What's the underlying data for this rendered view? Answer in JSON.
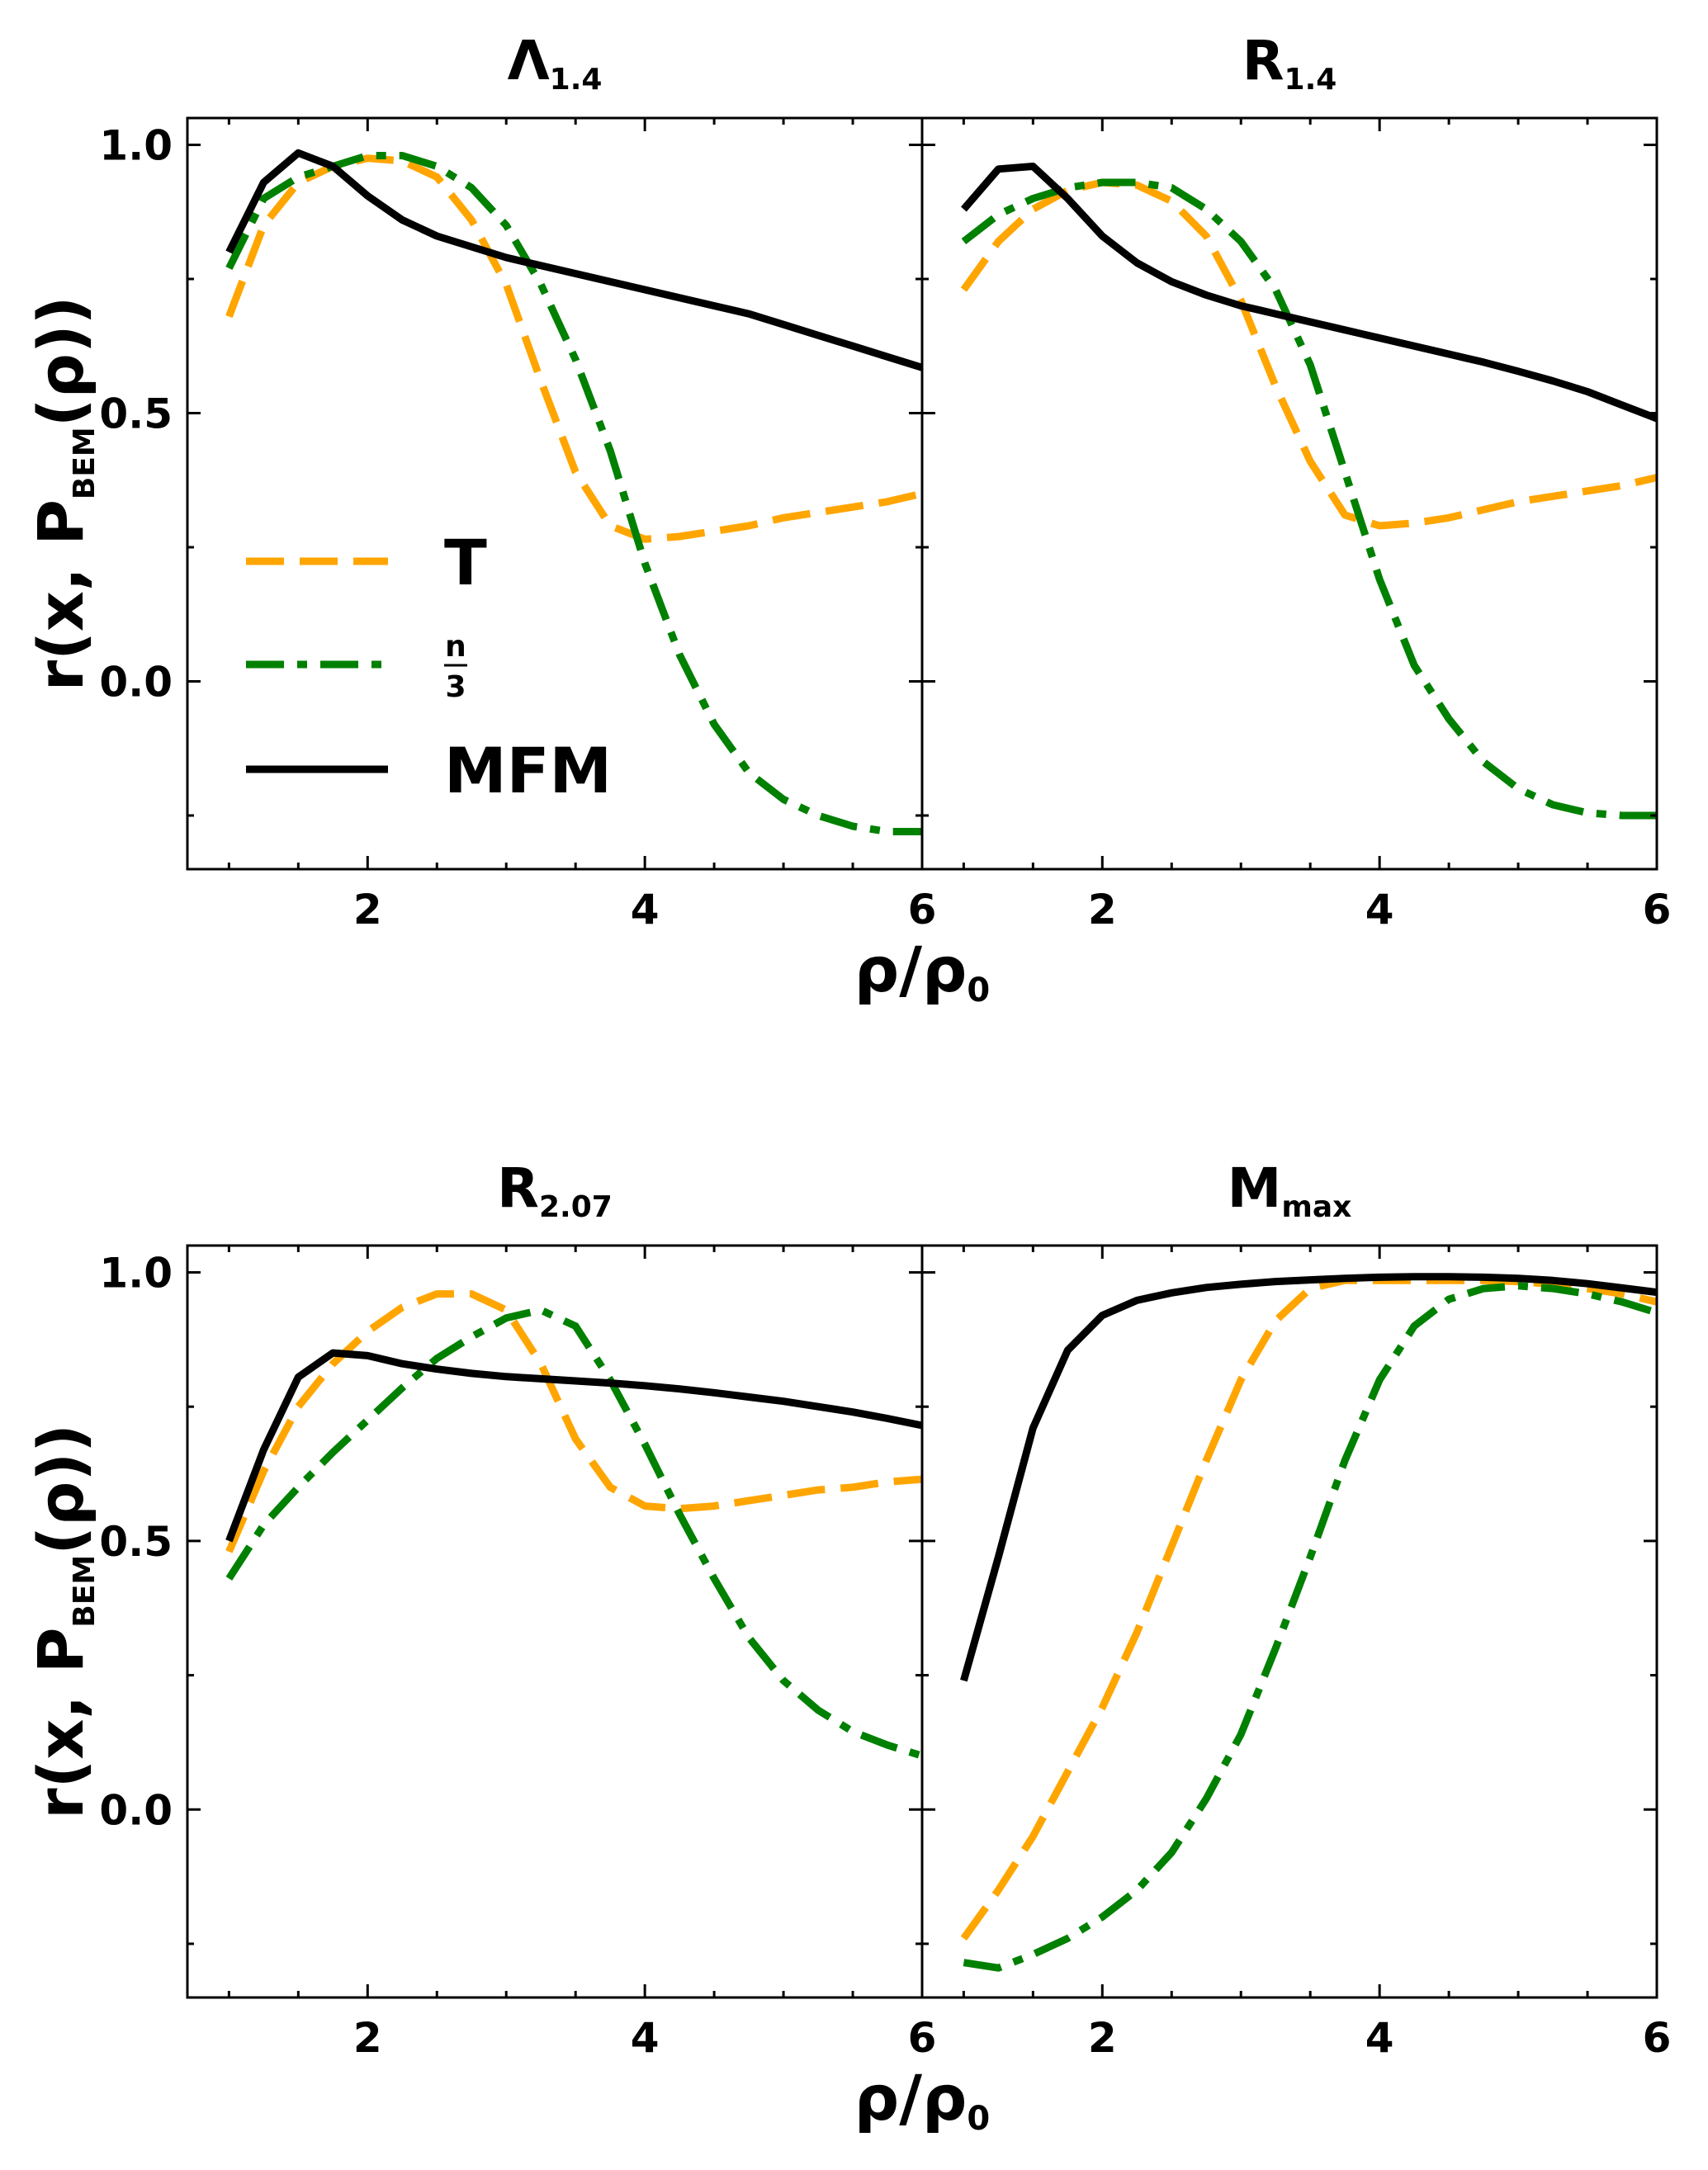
{
  "x_label": "ρ/ρ",
  "x_label_sub": "0",
  "y_label_main": "r(x, P",
  "y_label_sub": "BEM",
  "y_label_end": "(ρ))",
  "legend": {
    "entries": [
      {
        "label": "T",
        "series": "T"
      },
      {
        "label_num": "n",
        "label_den": "3",
        "series": "n/3"
      },
      {
        "label": "MFM",
        "series": "MFM"
      }
    ]
  },
  "colors": {
    "T": "#FFA500",
    "n/3": "#008000",
    "MFM": "#000000"
  },
  "chart_data": [
    {
      "type": "line",
      "title": "Λ",
      "title_sub": "1.4",
      "xlim": [
        0.7,
        6
      ],
      "ylim": [
        -0.35,
        1.05
      ],
      "xticks": [
        2,
        4,
        6
      ],
      "yticks": [
        0.0,
        0.5,
        1.0
      ],
      "series": [
        {
          "name": "T",
          "style": "dashed",
          "x": [
            1.0,
            1.25,
            1.5,
            1.75,
            2.0,
            2.25,
            2.5,
            2.75,
            3.0,
            3.25,
            3.5,
            3.75,
            4.0,
            4.25,
            4.5,
            4.75,
            5.0,
            5.25,
            5.5,
            5.75,
            6.0
          ],
          "y": [
            0.68,
            0.85,
            0.93,
            0.96,
            0.975,
            0.97,
            0.94,
            0.86,
            0.74,
            0.56,
            0.39,
            0.29,
            0.265,
            0.27,
            0.28,
            0.29,
            0.305,
            0.315,
            0.325,
            0.335,
            0.35
          ]
        },
        {
          "name": "n/3",
          "style": "dashdot",
          "x": [
            1.0,
            1.25,
            1.5,
            1.75,
            2.0,
            2.25,
            2.5,
            2.75,
            3.0,
            3.25,
            3.5,
            3.75,
            4.0,
            4.25,
            4.5,
            4.75,
            5.0,
            5.25,
            5.5,
            5.75,
            6.0
          ],
          "y": [
            0.77,
            0.9,
            0.94,
            0.96,
            0.98,
            0.98,
            0.96,
            0.92,
            0.85,
            0.74,
            0.6,
            0.43,
            0.22,
            0.05,
            -0.08,
            -0.17,
            -0.22,
            -0.25,
            -0.27,
            -0.28,
            -0.28
          ]
        },
        {
          "name": "MFM",
          "style": "solid",
          "x": [
            1.0,
            1.25,
            1.5,
            1.75,
            2.0,
            2.25,
            2.5,
            2.75,
            3.0,
            3.25,
            3.5,
            3.75,
            4.0,
            4.25,
            4.5,
            4.75,
            5.0,
            5.25,
            5.5,
            5.75,
            6.0
          ],
          "y": [
            0.8,
            0.93,
            0.985,
            0.96,
            0.905,
            0.86,
            0.83,
            0.81,
            0.79,
            0.775,
            0.76,
            0.745,
            0.73,
            0.715,
            0.7,
            0.685,
            0.665,
            0.645,
            0.625,
            0.605,
            0.585
          ]
        }
      ]
    },
    {
      "type": "line",
      "title": "R",
      "title_sub": "1.4",
      "xlim": [
        0.7,
        6
      ],
      "ylim": [
        -0.35,
        1.05
      ],
      "xticks": [
        2,
        4,
        6
      ],
      "yticks": [
        0.0,
        0.5,
        1.0
      ],
      "series": [
        {
          "name": "T",
          "style": "dashed",
          "x": [
            1.0,
            1.25,
            1.5,
            1.75,
            2.0,
            2.25,
            2.5,
            2.75,
            3.0,
            3.25,
            3.5,
            3.75,
            4.0,
            4.25,
            4.5,
            4.75,
            5.0,
            5.25,
            5.5,
            5.75,
            6.0
          ],
          "y": [
            0.73,
            0.82,
            0.88,
            0.915,
            0.93,
            0.925,
            0.895,
            0.83,
            0.71,
            0.55,
            0.41,
            0.31,
            0.29,
            0.295,
            0.305,
            0.32,
            0.335,
            0.345,
            0.355,
            0.365,
            0.38
          ]
        },
        {
          "name": "n/3",
          "style": "dashdot",
          "x": [
            1.0,
            1.25,
            1.5,
            1.75,
            2.0,
            2.25,
            2.5,
            2.75,
            3.0,
            3.25,
            3.5,
            3.75,
            4.0,
            4.25,
            4.5,
            4.75,
            5.0,
            5.25,
            5.5,
            5.75,
            6.0
          ],
          "y": [
            0.82,
            0.87,
            0.9,
            0.92,
            0.93,
            0.93,
            0.92,
            0.88,
            0.82,
            0.73,
            0.59,
            0.39,
            0.19,
            0.03,
            -0.07,
            -0.15,
            -0.2,
            -0.23,
            -0.245,
            -0.25,
            -0.25
          ]
        },
        {
          "name": "MFM",
          "style": "solid",
          "x": [
            1.0,
            1.25,
            1.5,
            1.75,
            2.0,
            2.25,
            2.5,
            2.75,
            3.0,
            3.25,
            3.5,
            3.75,
            4.0,
            4.25,
            4.5,
            4.75,
            5.0,
            5.25,
            5.5,
            5.75,
            6.0
          ],
          "y": [
            0.88,
            0.955,
            0.96,
            0.9,
            0.83,
            0.78,
            0.745,
            0.72,
            0.7,
            0.685,
            0.67,
            0.655,
            0.64,
            0.625,
            0.61,
            0.595,
            0.578,
            0.56,
            0.54,
            0.515,
            0.49
          ]
        }
      ]
    },
    {
      "type": "line",
      "title": "R",
      "title_sub": "2.07",
      "xlim": [
        0.7,
        6
      ],
      "ylim": [
        -0.35,
        1.05
      ],
      "xticks": [
        2,
        4,
        6
      ],
      "yticks": [
        0.0,
        0.5,
        1.0
      ],
      "series": [
        {
          "name": "T",
          "style": "dashed",
          "x": [
            1.0,
            1.25,
            1.5,
            1.75,
            2.0,
            2.25,
            2.5,
            2.75,
            3.0,
            3.25,
            3.5,
            3.75,
            4.0,
            4.25,
            4.5,
            4.75,
            5.0,
            5.25,
            5.5,
            5.75,
            6.0
          ],
          "y": [
            0.48,
            0.63,
            0.75,
            0.83,
            0.89,
            0.935,
            0.96,
            0.96,
            0.93,
            0.83,
            0.69,
            0.6,
            0.565,
            0.56,
            0.565,
            0.575,
            0.585,
            0.595,
            0.6,
            0.61,
            0.615
          ]
        },
        {
          "name": "n/3",
          "style": "dashdot",
          "x": [
            1.0,
            1.25,
            1.5,
            1.75,
            2.0,
            2.25,
            2.5,
            2.75,
            3.0,
            3.25,
            3.5,
            3.75,
            4.0,
            4.25,
            4.5,
            4.75,
            5.0,
            5.25,
            5.5,
            5.75,
            6.0
          ],
          "y": [
            0.43,
            0.53,
            0.6,
            0.665,
            0.725,
            0.785,
            0.84,
            0.88,
            0.915,
            0.93,
            0.9,
            0.8,
            0.68,
            0.55,
            0.43,
            0.32,
            0.24,
            0.185,
            0.145,
            0.12,
            0.1
          ]
        },
        {
          "name": "MFM",
          "style": "solid",
          "x": [
            1.0,
            1.25,
            1.5,
            1.75,
            2.0,
            2.25,
            2.5,
            2.75,
            3.0,
            3.25,
            3.5,
            3.75,
            4.0,
            4.25,
            4.5,
            4.75,
            5.0,
            5.25,
            5.5,
            5.75,
            6.0
          ],
          "y": [
            0.5,
            0.67,
            0.805,
            0.85,
            0.845,
            0.83,
            0.82,
            0.812,
            0.806,
            0.802,
            0.798,
            0.794,
            0.789,
            0.783,
            0.776,
            0.768,
            0.76,
            0.75,
            0.74,
            0.728,
            0.715
          ]
        }
      ]
    },
    {
      "type": "line",
      "title": "M",
      "title_sub": "max",
      "xlim": [
        0.7,
        6
      ],
      "ylim": [
        -0.35,
        1.05
      ],
      "xticks": [
        2,
        4,
        6
      ],
      "yticks": [
        0.0,
        0.5,
        1.0
      ],
      "series": [
        {
          "name": "T",
          "style": "dashed",
          "x": [
            1.0,
            1.25,
            1.5,
            1.75,
            2.0,
            2.25,
            2.5,
            2.75,
            3.0,
            3.25,
            3.5,
            3.75,
            4.0,
            4.25,
            4.5,
            4.75,
            5.0,
            5.25,
            5.5,
            5.75,
            6.0
          ],
          "y": [
            -0.24,
            -0.15,
            -0.05,
            0.07,
            0.19,
            0.33,
            0.49,
            0.65,
            0.8,
            0.91,
            0.97,
            0.985,
            0.985,
            0.985,
            0.985,
            0.985,
            0.983,
            0.978,
            0.97,
            0.96,
            0.945
          ]
        },
        {
          "name": "n/3",
          "style": "dashdot",
          "x": [
            1.0,
            1.25,
            1.5,
            1.75,
            2.0,
            2.25,
            2.5,
            2.75,
            3.0,
            3.25,
            3.5,
            3.75,
            4.0,
            4.25,
            4.5,
            4.75,
            5.0,
            5.25,
            5.5,
            5.75,
            6.0
          ],
          "y": [
            -0.285,
            -0.295,
            -0.27,
            -0.24,
            -0.2,
            -0.15,
            -0.08,
            0.02,
            0.14,
            0.3,
            0.47,
            0.65,
            0.8,
            0.9,
            0.95,
            0.97,
            0.975,
            0.97,
            0.96,
            0.945,
            0.925
          ]
        },
        {
          "name": "MFM",
          "style": "solid",
          "x": [
            1.0,
            1.25,
            1.5,
            1.75,
            2.0,
            2.25,
            2.5,
            2.75,
            3.0,
            3.25,
            3.5,
            3.75,
            4.0,
            4.25,
            4.5,
            4.75,
            5.0,
            5.25,
            5.5,
            5.75,
            6.0
          ],
          "y": [
            0.24,
            0.47,
            0.71,
            0.855,
            0.92,
            0.948,
            0.962,
            0.972,
            0.978,
            0.983,
            0.986,
            0.989,
            0.991,
            0.992,
            0.992,
            0.991,
            0.989,
            0.985,
            0.979,
            0.971,
            0.963
          ]
        }
      ]
    }
  ]
}
